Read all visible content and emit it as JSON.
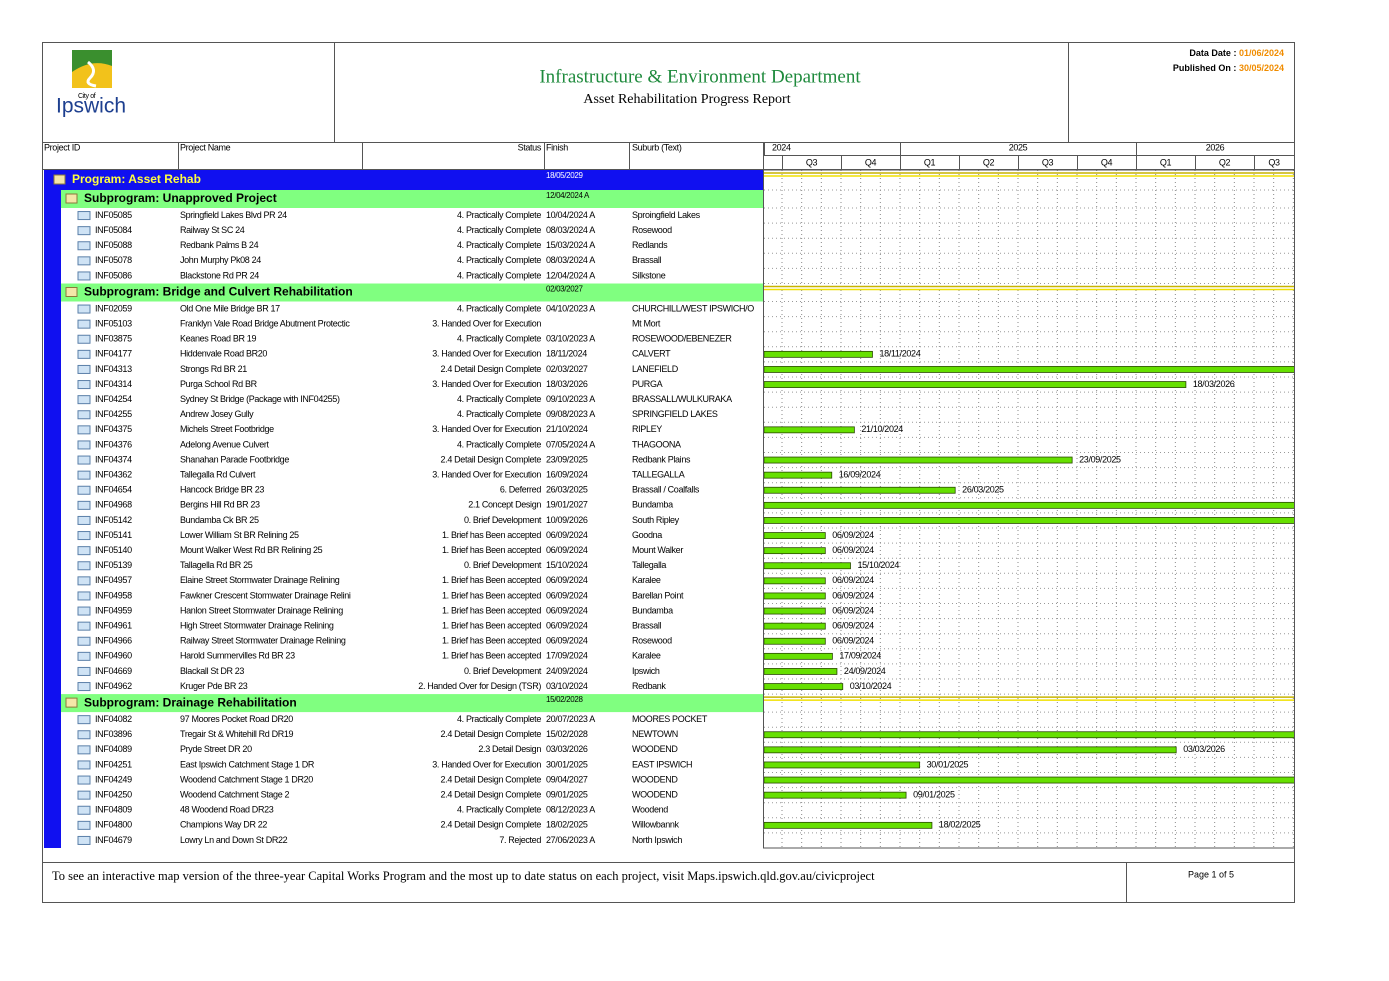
{
  "header": {
    "logo_top": "City of",
    "logo_bottom": "Ipswich",
    "title": "Infrastructure & Environment Department",
    "subtitle": "Asset Rehabilitation Progress Report",
    "data_date_label": "Data Date :",
    "data_date": "01/06/2024",
    "published_label": "Published On :",
    "published": "30/05/2024"
  },
  "columns": [
    "Project ID",
    "Project Name",
    "Status",
    "Finish",
    "Suburb (Text)"
  ],
  "timeline": {
    "years": [
      "2024",
      "2025",
      "2026"
    ],
    "quarters": [
      "Q3",
      "Q4",
      "Q1",
      "Q2",
      "Q3",
      "Q4",
      "Q1",
      "Q2",
      "Q3"
    ]
  },
  "program": {
    "label": "Program: Asset Rehab",
    "finish": "18/05/2029"
  },
  "subprograms": [
    {
      "label": "Subprogram: Unapproved Project",
      "finish": "12/04/2024 A",
      "rows": [
        [
          "INF05085",
          "Springfield Lakes Blvd PR 24",
          "4. Practically Complete",
          "10/04/2024 A",
          "Sproingfield Lakes"
        ],
        [
          "INF05084",
          "Railway St SC 24",
          "4. Practically Complete",
          "08/03/2024 A",
          "Rosewood"
        ],
        [
          "INF05088",
          "Redbank Palms B 24",
          "4. Practically Complete",
          "15/03/2024 A",
          "Redlands"
        ],
        [
          "INF05078",
          "John Murphy Pk08 24",
          "4. Practically Complete",
          "08/03/2024 A",
          "Brassall"
        ],
        [
          "INF05086",
          "Blackstone Rd PR 24",
          "4. Practically Complete",
          "12/04/2024 A",
          "Silkstone"
        ]
      ]
    },
    {
      "label": "Subprogram: Bridge and Culvert Rehabilitation",
      "finish": "02/03/2027",
      "rows": [
        [
          "INF02059",
          "Old One Mile Bridge BR 17",
          "4. Practically Complete",
          "04/10/2023 A",
          "CHURCHILL/WEST IPSWICH/O"
        ],
        [
          "INF05103",
          "Franklyn Vale Road Bridge Abutment Protectic",
          "3. Handed Over for Execution",
          null,
          "Mt Mort"
        ],
        [
          "INF03875",
          "Keanes Road BR 19",
          "4. Practically Complete",
          "03/10/2023 A",
          "ROSEWOOD/EBENEZER"
        ],
        [
          "INF04177",
          "Hiddenvale Road BR20",
          "3. Handed Over for Execution",
          "18/11/2024",
          "CALVERT"
        ],
        [
          "INF04313",
          "Strongs Rd BR 21",
          "2.4 Detail Design Complete",
          "02/03/2027",
          "LANEFIELD"
        ],
        [
          "INF04314",
          "Purga School Rd BR",
          "3. Handed Over for Execution",
          "18/03/2026",
          "PURGA"
        ],
        [
          "INF04254",
          "Sydney St Bridge (Package with INF04255)",
          "4. Practically Complete",
          "09/10/2023 A",
          "BRASSALL/WULKURAKA"
        ],
        [
          "INF04255",
          "Andrew Josey Gully",
          "4. Practically Complete",
          "09/08/2023 A",
          "SPRINGFIELD LAKES"
        ],
        [
          "INF04375",
          "Michels Street Footbridge",
          "3. Handed Over for Execution",
          "21/10/2024",
          "RIPLEY"
        ],
        [
          "INF04376",
          "Adelong Avenue Culvert",
          "4. Practically Complete",
          "07/05/2024 A",
          "THAGOONA"
        ],
        [
          "INF04374",
          "Shanahan Parade Footbridge",
          "2.4 Detail Design Complete",
          "23/09/2025",
          "Redbank Plains"
        ],
        [
          "INF04362",
          "Tallegalla Rd Culvert",
          "3. Handed Over for Execution",
          "16/09/2024",
          "TALLEGALLA"
        ],
        [
          "INF04654",
          "Hancock Bridge BR 23",
          "6. Deferred",
          "26/03/2025",
          "Brassall / Coalfalls"
        ],
        [
          "INF04968",
          "Bergins Hill Rd BR 23",
          "2.1 Concept Design",
          "19/01/2027",
          "Bundamba"
        ],
        [
          "INF05142",
          "Bundamba Ck BR 25",
          "0. Brief Development",
          "10/09/2026",
          "South Ripley"
        ],
        [
          "INF05141",
          "Lower William St BR Relining 25",
          "1. Brief has Been accepted",
          "06/09/2024",
          "Goodna"
        ],
        [
          "INF05140",
          "Mount Walker West Rd BR Relining 25",
          "1. Brief has Been accepted",
          "06/09/2024",
          "Mount Walker"
        ],
        [
          "INF05139",
          "Tallagella Rd BR 25",
          "0. Brief Development",
          "15/10/2024",
          "Tallegalla"
        ],
        [
          "INF04957",
          "Elaine Street Stormwater Drainage Relining",
          "1. Brief has Been accepted",
          "06/09/2024",
          "Karalee"
        ],
        [
          "INF04958",
          "Fawkner Crescent Stormwater Drainage Relini",
          "1. Brief has Been accepted",
          "06/09/2024",
          "Barellan Point"
        ],
        [
          "INF04959",
          "Hanlon Street Stormwater Drainage Relining",
          "1. Brief has Been accepted",
          "06/09/2024",
          "Bundamba"
        ],
        [
          "INF04961",
          "High Street Stormwater Drainage Relining",
          "1. Brief has Been accepted",
          "06/09/2024",
          "Brassall"
        ],
        [
          "INF04966",
          "Railway Street Stormwater Drainage Relining",
          "1. Brief has Been accepted",
          "06/09/2024",
          "Rosewood"
        ],
        [
          "INF04960",
          "Harold Summervilles Rd BR 23",
          "1. Brief has Been accepted",
          "17/09/2024",
          "Karalee"
        ],
        [
          "INF04669",
          "Blackall St DR 23",
          "0. Brief Development",
          "24/09/2024",
          "Ipswich"
        ],
        [
          "INF04962",
          "Kruger Pde BR 23",
          "2. Handed Over for Design (TSR)",
          "03/10/2024",
          "Redbank"
        ]
      ]
    },
    {
      "label": "Subprogram: Drainage Rehabilitation",
      "finish": "15/02/2028",
      "rows": [
        [
          "INF04082",
          "97 Moores Pocket Road DR20",
          "4. Practically Complete",
          "20/07/2023 A",
          "MOORES POCKET"
        ],
        [
          "INF03896",
          "Tregair St & Whitehill Rd DR19",
          "2.4 Detail Design Complete",
          "15/02/2028",
          "NEWTOWN"
        ],
        [
          "INF04089",
          "Pryde Street DR 20",
          "2.3 Detail Design",
          "03/03/2026",
          "WOODEND"
        ],
        [
          "INF04251",
          "East Ipswich Catchment Stage 1 DR",
          "3. Handed Over for Execution",
          "30/01/2025",
          "EAST IPSWICH"
        ],
        [
          "INF04249",
          "Woodend Catchment Stage 1 DR20",
          "2.4 Detail Design Complete",
          "09/04/2027",
          "WOODEND"
        ],
        [
          "INF04250",
          "Woodend Catchment Stage 2",
          "2.4 Detail Design Complete",
          "09/01/2025",
          "WOODEND"
        ],
        [
          "INF04809",
          "48 Woodend Road DR23",
          "4. Practically Complete",
          "08/12/2023 A",
          "Woodend"
        ],
        [
          "INF04800",
          "Champions Way DR 22",
          "2.4 Detail Design Complete",
          "18/02/2025",
          "Willowbannk"
        ],
        [
          "INF04679",
          "Lowry Ln and Down St DR22",
          "7. Rejected",
          "27/06/2023 A",
          "North Ipswich"
        ]
      ]
    }
  ],
  "footer": {
    "note": "To see an interactive map version of the three-year Capital Works Program and the most up to date status on each project, visit Maps.ipswich.qld.gov.au/civicproject",
    "page": "Page 1 of 5"
  }
}
